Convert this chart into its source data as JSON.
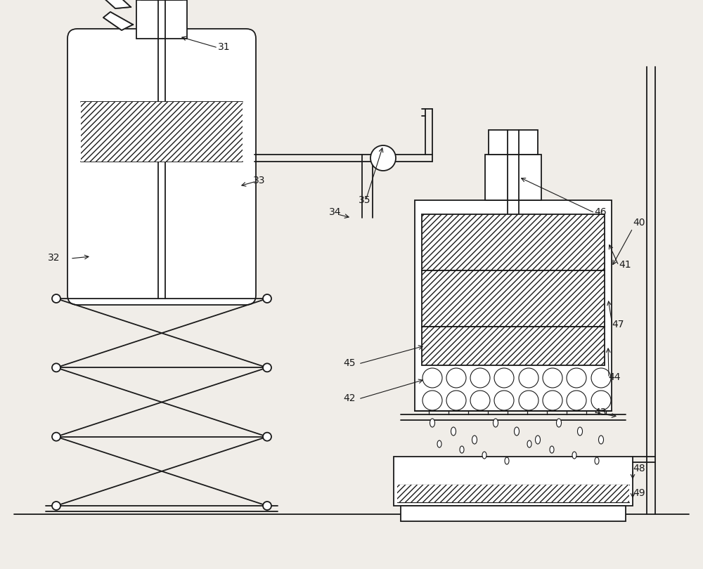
{
  "background_color": "#f0ede8",
  "line_color": "#1a1a1a",
  "figsize": [
    10,
    8.1
  ],
  "dpi": 100,
  "lw_main": 1.3,
  "lw_thin": 0.9,
  "label_fs": 10
}
